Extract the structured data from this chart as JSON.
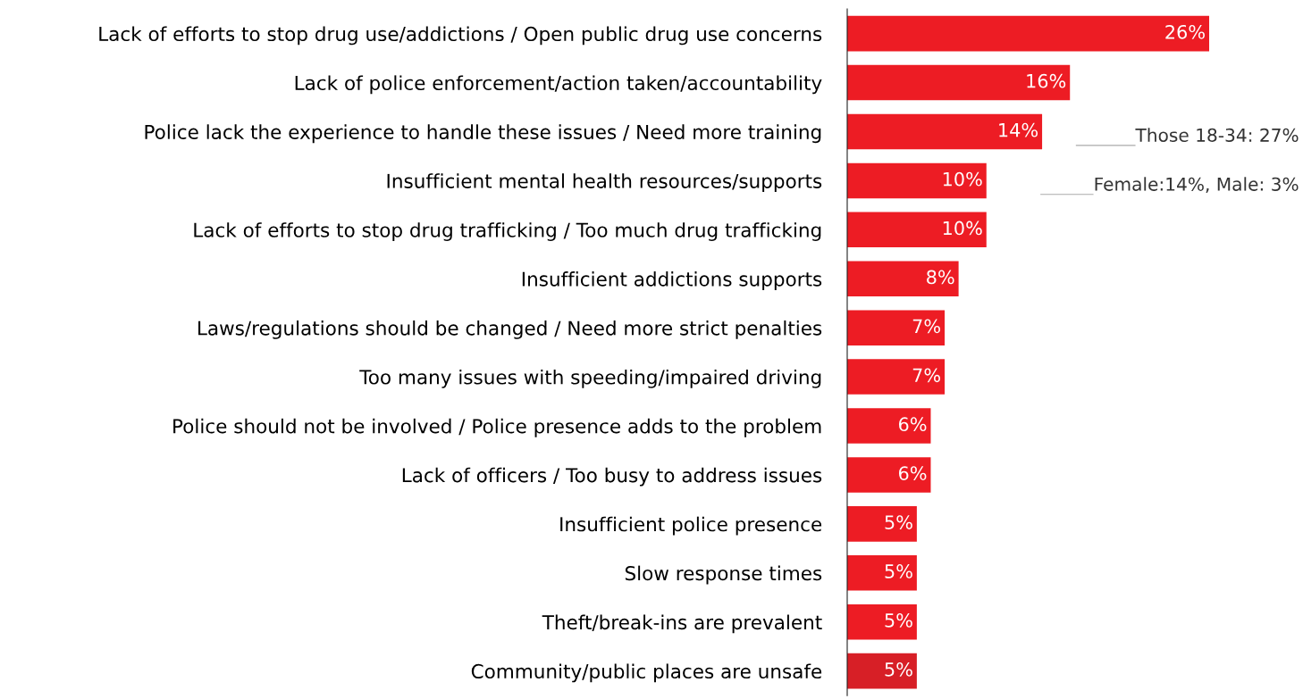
{
  "chart_data": {
    "type": "bar",
    "orientation": "horizontal",
    "categories": [
      "Lack of efforts to stop drug use/addictions / Open public drug use concerns",
      "Lack of police enforcement/action taken/accountability",
      "Police lack the experience to handle these issues / Need more training",
      "Insufficient mental health resources/supports",
      "Lack of efforts to stop drug trafficking / Too much drug trafficking",
      "Insufficient addictions supports",
      "Laws/regulations should be changed / Need more strict penalties",
      "Too many issues with speeding/impaired driving",
      "Police should not be involved / Police presence adds to the problem",
      "Lack of officers / Too busy to address issues",
      "Insufficient police presence",
      "Slow response times",
      "Theft/break-ins are prevalent",
      "Community/public places are unsafe"
    ],
    "values": [
      26,
      16,
      14,
      10,
      10,
      8,
      7,
      7,
      6,
      6,
      5,
      5,
      5,
      5
    ],
    "colors": [
      "#ed1c24",
      "#ed1c24",
      "#ed1c24",
      "#ed1c24",
      "#ed1c24",
      "#ed1c24",
      "#ed1c24",
      "#ed1c24",
      "#ed1c24",
      "#ed1c24",
      "#ed1c24",
      "#ed1c24",
      "#ed1c24",
      "#d71f26"
    ],
    "value_labels": [
      "26%",
      "16%",
      "14%",
      "10%",
      "10%",
      "8%",
      "7%",
      "7%",
      "6%",
      "6%",
      "5%",
      "5%",
      "5%",
      "5%"
    ],
    "tick_labels": "y",
    "grid": false,
    "legend": false,
    "annotations": [
      "Those 18-34: 27%",
      "Female:14%, Male: 3%"
    ]
  }
}
